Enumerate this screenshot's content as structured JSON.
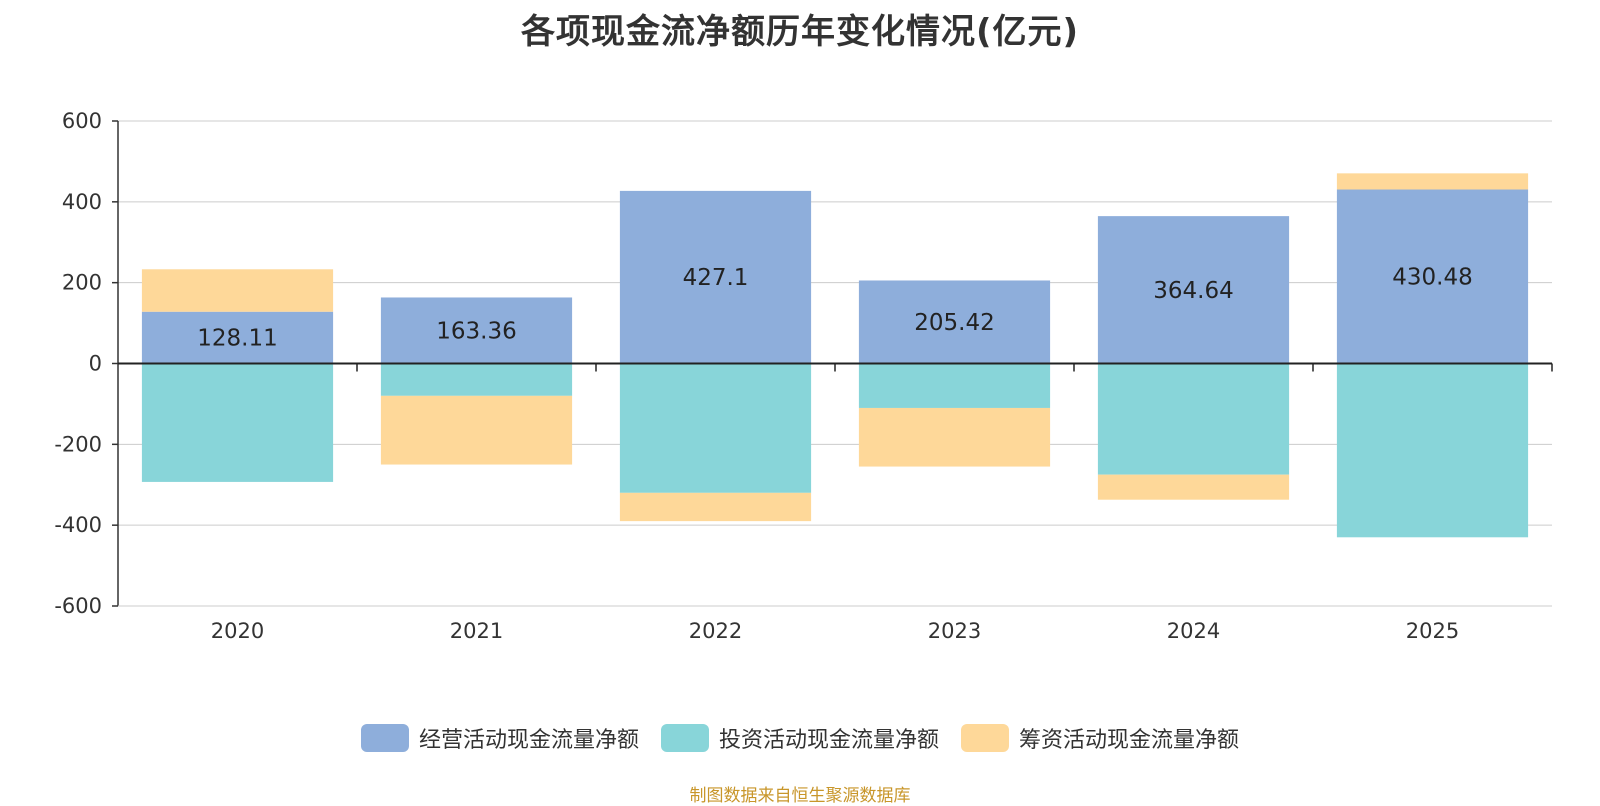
{
  "chart_data": {
    "type": "bar",
    "stacked": true,
    "title": "各项现金流净额历年变化情况(亿元)",
    "categories": [
      "2020",
      "2021",
      "2022",
      "2023",
      "2024",
      "2025"
    ],
    "ylim": [
      -600,
      600
    ],
    "yticks": [
      600,
      400,
      200,
      0,
      -200,
      -400,
      -600
    ],
    "grid": true,
    "legend_position": "bottom",
    "series": [
      {
        "name": "经营活动现金流量净额",
        "color": "#8eaedb",
        "values": [
          128.11,
          163.36,
          427.1,
          205.42,
          364.64,
          430.48
        ],
        "labels": [
          "128.11",
          "163.36",
          "427.1",
          "205.42",
          "364.64",
          "430.48"
        ]
      },
      {
        "name": "投资活动现金流量净额",
        "color": "#88d5d9",
        "values": [
          -293,
          -80,
          -320,
          -110,
          -275,
          -430
        ]
      },
      {
        "name": "筹资活动现金流量净额",
        "color": "#fed899",
        "values": [
          105,
          -170,
          -70,
          -145,
          -62,
          40
        ]
      }
    ],
    "source": "制图数据来自恒生聚源数据库"
  }
}
